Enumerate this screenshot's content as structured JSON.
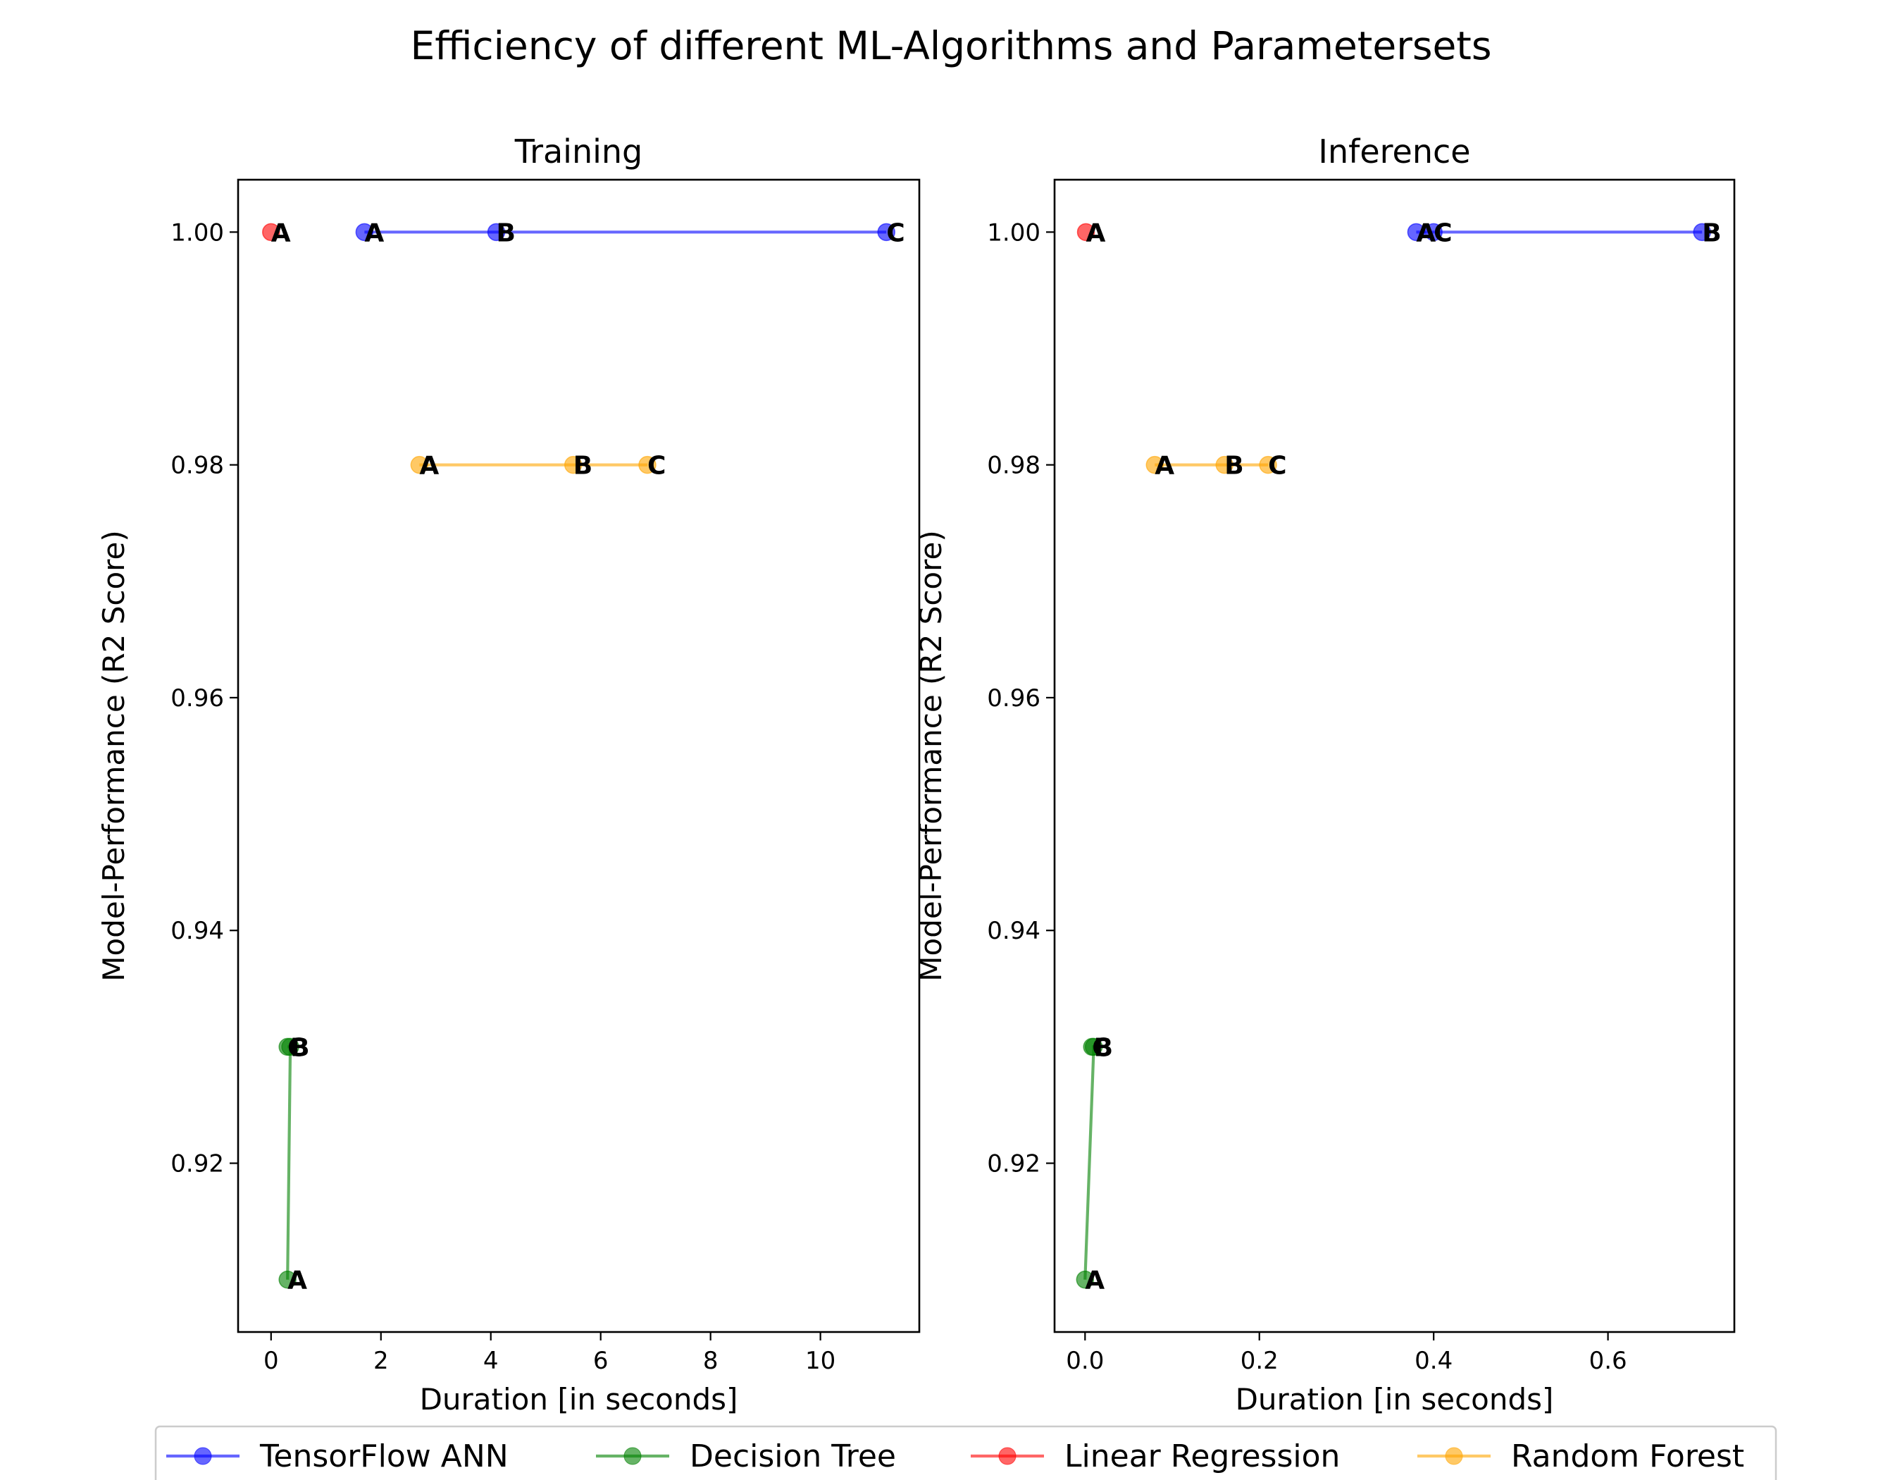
{
  "title": "Efficiency of different ML-Algorithms and Parametersets",
  "legend": {
    "placement": "bottom-center",
    "entries": [
      {
        "label": "TensorFlow ANN",
        "color": "#0000ff"
      },
      {
        "label": "Decision Tree",
        "color": "#008000"
      },
      {
        "label": "Linear Regression",
        "color": "#ff0000"
      },
      {
        "label": "Random Forest",
        "color": "#ffa500"
      }
    ]
  },
  "chart_data": [
    {
      "type": "line",
      "title": "Training",
      "xlabel": "Duration [in seconds]",
      "ylabel": "Model-Performance (R2 Score)",
      "xlim": [
        -0.6,
        11.8
      ],
      "ylim": [
        0.9055,
        1.0045
      ],
      "xticks": [
        0,
        2,
        4,
        6,
        8,
        10
      ],
      "xtick_labels": [
        "0",
        "2",
        "4",
        "6",
        "8",
        "10"
      ],
      "yticks": [
        0.92,
        0.94,
        0.96,
        0.98,
        1.0
      ],
      "ytick_labels": [
        "0.92",
        "0.94",
        "0.96",
        "0.98",
        "1.00"
      ],
      "grid": false,
      "series": [
        {
          "name": "TensorFlow ANN",
          "color": "#0000ff",
          "points": [
            {
              "x": 1.7,
              "y": 1.0,
              "label": "A"
            },
            {
              "x": 4.1,
              "y": 1.0,
              "label": "B"
            },
            {
              "x": 11.2,
              "y": 1.0,
              "label": "C"
            }
          ]
        },
        {
          "name": "Decision Tree",
          "color": "#008000",
          "points": [
            {
              "x": 0.3,
              "y": 0.91,
              "label": "A"
            },
            {
              "x": 0.35,
              "y": 0.93,
              "label": "B"
            },
            {
              "x": 0.3,
              "y": 0.93,
              "label": "C"
            }
          ]
        },
        {
          "name": "Linear Regression",
          "color": "#ff0000",
          "points": [
            {
              "x": 0.0,
              "y": 1.0,
              "label": "A"
            }
          ]
        },
        {
          "name": "Random Forest",
          "color": "#ffa500",
          "points": [
            {
              "x": 2.7,
              "y": 0.98,
              "label": "A"
            },
            {
              "x": 5.5,
              "y": 0.98,
              "label": "B"
            },
            {
              "x": 6.85,
              "y": 0.98,
              "label": "C"
            }
          ]
        }
      ]
    },
    {
      "type": "line",
      "title": "Inference",
      "xlabel": "Duration [in seconds]",
      "ylabel": "Model-Performance (R2 Score)",
      "xlim": [
        -0.035,
        0.745
      ],
      "ylim": [
        0.9055,
        1.0045
      ],
      "xticks": [
        0.0,
        0.2,
        0.4,
        0.6
      ],
      "xtick_labels": [
        "0.0",
        "0.2",
        "0.4",
        "0.6"
      ],
      "yticks": [
        0.92,
        0.94,
        0.96,
        0.98,
        1.0
      ],
      "ytick_labels": [
        "0.92",
        "0.94",
        "0.96",
        "0.98",
        "1.00"
      ],
      "grid": false,
      "series": [
        {
          "name": "TensorFlow ANN",
          "color": "#0000ff",
          "points": [
            {
              "x": 0.38,
              "y": 1.0,
              "label": "A"
            },
            {
              "x": 0.708,
              "y": 1.0,
              "label": "B"
            },
            {
              "x": 0.4,
              "y": 1.0,
              "label": "C"
            }
          ]
        },
        {
          "name": "Decision Tree",
          "color": "#008000",
          "points": [
            {
              "x": 0.0,
              "y": 0.91,
              "label": "A"
            },
            {
              "x": 0.01,
              "y": 0.93,
              "label": "B"
            },
            {
              "x": 0.008,
              "y": 0.93,
              "label": "C"
            }
          ]
        },
        {
          "name": "Linear Regression",
          "color": "#ff0000",
          "points": [
            {
              "x": 0.001,
              "y": 1.0,
              "label": "A"
            }
          ]
        },
        {
          "name": "Random Forest",
          "color": "#ffa500",
          "points": [
            {
              "x": 0.08,
              "y": 0.98,
              "label": "A"
            },
            {
              "x": 0.16,
              "y": 0.98,
              "label": "B"
            },
            {
              "x": 0.21,
              "y": 0.98,
              "label": "C"
            }
          ]
        }
      ]
    }
  ]
}
